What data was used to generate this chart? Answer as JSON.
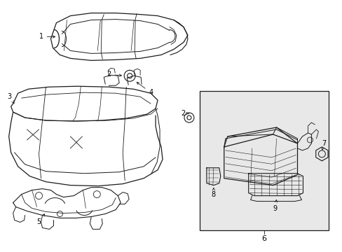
{
  "bg_color": "#ffffff",
  "line_color": "#1a1a1a",
  "box_bg": "#e8e8e8",
  "label_color": "#000000",
  "lw": 0.8,
  "fs": 7.0
}
